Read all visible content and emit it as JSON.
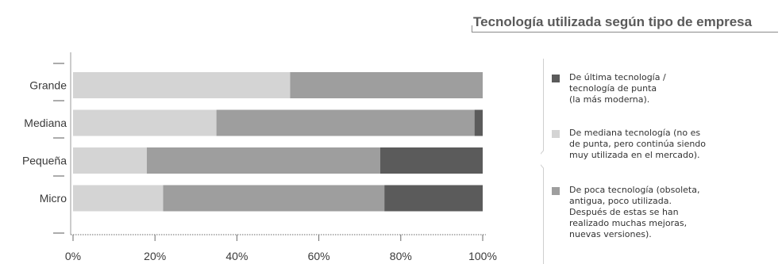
{
  "chart_data": {
    "type": "bar",
    "orientation": "horizontal",
    "stacked": true,
    "title": "Tecnología utilizada según tipo de empresa",
    "categories": [
      "Grande",
      "Mediana",
      "Pequeña",
      "Micro"
    ],
    "series": [
      {
        "name": "De mediana tecnología (no es de punta, pero continúa siendo muy utilizada en el mercado).",
        "color": "#d4d4d4",
        "values": [
          53,
          35,
          18,
          22
        ]
      },
      {
        "name": "De poca tecnología (obsoleta, antigua, poco utilizada. Después de estas se han realizado muchas mejoras, nuevas versiones).",
        "color": "#9e9e9e",
        "values": [
          47,
          63,
          57,
          54
        ]
      },
      {
        "name": "De última tecnología / tecnología de punta (la más moderna).",
        "color": "#5b5b5b",
        "values": [
          0,
          2,
          25,
          24
        ]
      }
    ],
    "xlim": [
      0,
      100
    ],
    "x_ticks": [
      "0%",
      "20%",
      "40%",
      "60%",
      "80%",
      "100%"
    ],
    "legend_position": "right"
  },
  "legend": [
    {
      "label": "De última tecnología /\ntecnología de punta\n(la más moderna).",
      "color": "#5b5b5b"
    },
    {
      "label": "De mediana tecnología (no es\nde punta, pero continúa siendo\nmuy utilizada en el mercado).",
      "color": "#d4d4d4"
    },
    {
      "label": "De poca tecnología (obsoleta,\nantigua, poco utilizada.\nDespués de estas se han\nrealizado muchas mejoras,\nnuevas versiones).",
      "color": "#9e9e9e"
    }
  ]
}
